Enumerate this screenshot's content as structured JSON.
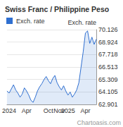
{
  "chart_data": {
    "type": "line",
    "title": "Swiss Franc / Philippine Peso",
    "ylabel": "Exch. rate",
    "annotations": [
      "Chartoasis.com"
    ],
    "categories": [
      null,
      "2024",
      null,
      null,
      null,
      null,
      null,
      null,
      null,
      "Apr",
      null,
      null,
      null,
      null,
      null,
      null,
      null,
      null,
      null,
      "Oct",
      null,
      null,
      null,
      null,
      "Nov",
      null,
      null,
      null,
      "2025",
      null,
      null,
      null,
      null,
      null,
      null,
      null,
      "Apr",
      null,
      null,
      null,
      null,
      null
    ],
    "series": [
      {
        "name": "Exch. rate",
        "color": "#2f6fd0",
        "values": [
          64.2,
          64.0,
          64.4,
          64.8,
          64.3,
          64.0,
          63.6,
          63.9,
          64.5,
          64.2,
          63.8,
          63.3,
          63.1,
          63.6,
          64.2,
          64.6,
          64.9,
          65.3,
          65.6,
          65.2,
          64.9,
          65.4,
          65.7,
          65.0,
          64.6,
          64.3,
          64.7,
          64.2,
          63.8,
          64.1,
          63.6,
          63.9,
          64.3,
          65.0,
          66.5,
          68.0,
          69.8,
          70.0,
          68.8,
          69.4,
          68.7,
          69.2
        ]
      }
    ],
    "ylim": [
      62.901,
      70.126
    ],
    "yticks": [
      62.901,
      64.105,
      65.309,
      66.513,
      67.718,
      68.924,
      70.126
    ],
    "grid": true,
    "legend": "top-left"
  }
}
